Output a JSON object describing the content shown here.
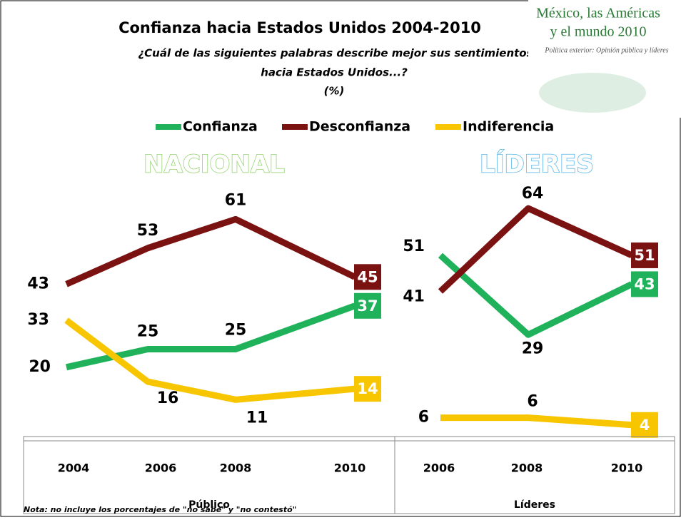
{
  "header": {
    "title": "Confianza hacia Estados Unidos 2004-2010",
    "subtitle": "¿Cuál de las siguientes palabras describe mejor sus sentimientos",
    "subtitle2": "hacia Estados Unidos...?",
    "unit": "(%)",
    "logo_line1": "México, las Américas",
    "logo_line2": "y el mundo 2010",
    "logo_line3": "Política exterior: Opinión pública y líderes"
  },
  "note": "Nota: no incluye los porcentajes de \"no sabe\" y \"no contestó\"",
  "chart_data": [
    {
      "type": "line",
      "title": "NACIONAL",
      "title_color": "#8fd16a",
      "xlabel": "Público",
      "categories": [
        "2004",
        "2006",
        "2008",
        "2010"
      ],
      "series": [
        {
          "name": "Confianza",
          "color": "#1fb25a",
          "values": [
            20,
            25,
            25,
            37
          ]
        },
        {
          "name": "Desconfianza",
          "color": "#7a1212",
          "values": [
            43,
            53,
            61,
            45
          ]
        },
        {
          "name": "Indiferencia",
          "color": "#f7c600",
          "values": [
            33,
            16,
            11,
            14
          ]
        }
      ]
    },
    {
      "type": "line",
      "title": "LÍDERES",
      "title_color": "#4db3ea",
      "xlabel": "Líderes",
      "categories": [
        "2006",
        "2008",
        "2010"
      ],
      "series": [
        {
          "color": "#1fb25a",
          "values": [
            51,
            29,
            43
          ]
        },
        {
          "color": "#7a1212",
          "values": [
            41,
            64,
            51
          ]
        },
        {
          "color": "#f7c600",
          "values": [
            6,
            6,
            4
          ]
        }
      ]
    }
  ]
}
